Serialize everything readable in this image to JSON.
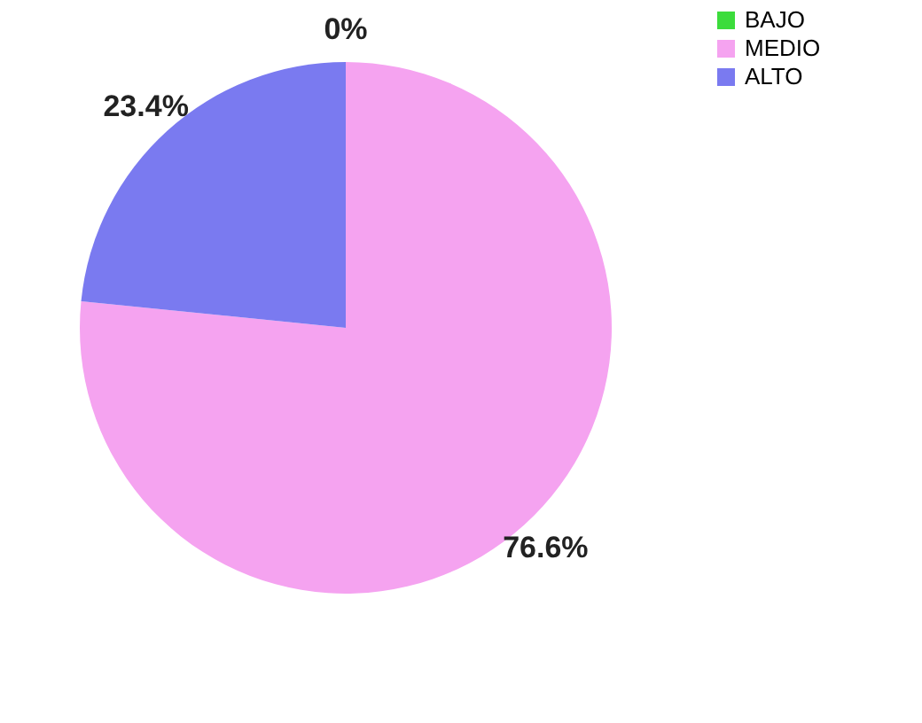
{
  "chart_data": {
    "type": "pie",
    "categories": [
      "BAJO",
      "MEDIO",
      "ALTO"
    ],
    "values": [
      0,
      76.6,
      23.4
    ],
    "colors": [
      "#3cdc3c",
      "#f5a3f0",
      "#7a7af0"
    ],
    "value_labels": [
      "0%",
      "76.6%",
      "23.4%"
    ],
    "legend": "right"
  }
}
